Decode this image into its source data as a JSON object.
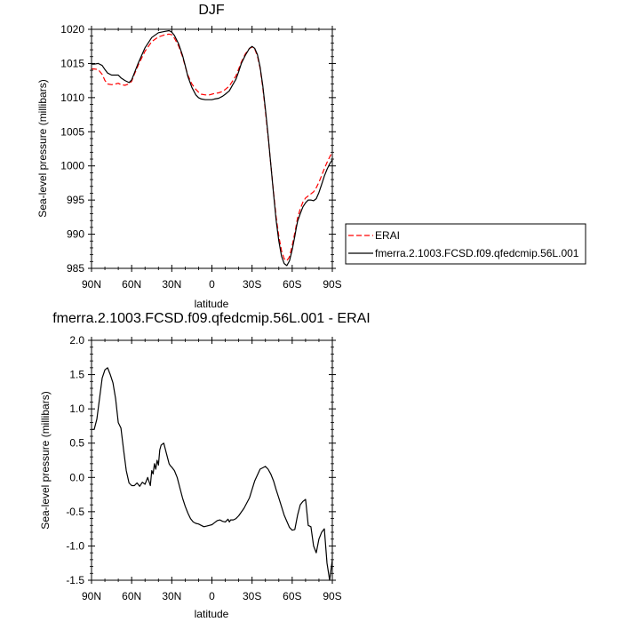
{
  "chart_data": [
    {
      "type": "line",
      "title": "DJF",
      "xlabel": "latitude",
      "ylabel": "Sea-level pressure (millibars)",
      "xlim": [
        90,
        -90
      ],
      "ylim": [
        985,
        1020
      ],
      "x_ticks": [
        90,
        60,
        30,
        0,
        -30,
        -60,
        -90
      ],
      "x_tick_labels": [
        "90N",
        "60N",
        "30N",
        "0",
        "30S",
        "60S",
        "90S"
      ],
      "y_ticks": [
        985,
        990,
        995,
        1000,
        1005,
        1010,
        1015,
        1020
      ],
      "y_tick_labels": [
        "985",
        "990",
        "995",
        "1000",
        "1005",
        "1010",
        "1015",
        "1020"
      ],
      "grid": false,
      "legend_position": "right",
      "series": [
        {
          "name": "ERAI",
          "color": "#ff0000",
          "style": "dashed",
          "x": [
            90,
            88,
            85,
            82,
            80,
            78,
            75,
            72,
            70,
            68,
            65,
            62,
            60,
            58,
            55,
            50,
            45,
            40,
            35,
            32,
            30,
            28,
            25,
            22,
            20,
            18,
            15,
            12,
            10,
            8,
            5,
            2,
            0,
            -2,
            -5,
            -8,
            -10,
            -13,
            -15,
            -18,
            -20,
            -22,
            -25,
            -28,
            -30,
            -32,
            -34,
            -36,
            -38,
            -40,
            -42,
            -44,
            -46,
            -48,
            -50,
            -52,
            -54,
            -56,
            -58,
            -60,
            -62,
            -63,
            -64,
            -66,
            -68,
            -70,
            -72,
            -74,
            -76,
            -78,
            -80,
            -82,
            -84,
            -86,
            -88,
            -90
          ],
          "values": [
            1014.2,
            1014.2,
            1014.1,
            1013.4,
            1012.5,
            1012.0,
            1011.9,
            1012.0,
            1012.1,
            1011.9,
            1011.8,
            1012.0,
            1012.4,
            1013.4,
            1014.8,
            1016.8,
            1018.2,
            1018.9,
            1019.2,
            1019.3,
            1019.2,
            1018.7,
            1017.6,
            1016.0,
            1014.6,
            1013.3,
            1012.0,
            1011.2,
            1010.8,
            1010.5,
            1010.4,
            1010.4,
            1010.5,
            1010.6,
            1010.7,
            1010.9,
            1011.2,
            1011.7,
            1012.3,
            1013.2,
            1014.2,
            1015.2,
            1016.4,
            1017.2,
            1017.4,
            1017.1,
            1016.1,
            1014.3,
            1011.5,
            1008.0,
            1004.3,
            1000.3,
            996.2,
            992.5,
            989.7,
            987.6,
            986.4,
            986.1,
            986.7,
            988.3,
            990.2,
            991.3,
            992.4,
            993.7,
            994.7,
            995.3,
            995.6,
            995.9,
            996.2,
            996.8,
            997.6,
            998.6,
            999.6,
            1000.5,
            1001.3,
            1002.0
          ]
        },
        {
          "name": "fmerra.2.1003.FCSD.f09.qfedcmip.56L.001",
          "color": "#000000",
          "style": "solid",
          "x": [
            90,
            88,
            85,
            82,
            80,
            78,
            75,
            72,
            70,
            68,
            65,
            62,
            60,
            58,
            55,
            50,
            45,
            40,
            35,
            32,
            30,
            28,
            25,
            22,
            20,
            18,
            15,
            12,
            10,
            8,
            5,
            2,
            0,
            -2,
            -5,
            -8,
            -10,
            -13,
            -15,
            -18,
            -20,
            -22,
            -25,
            -28,
            -30,
            -32,
            -34,
            -36,
            -38,
            -40,
            -42,
            -44,
            -46,
            -48,
            -50,
            -52,
            -54,
            -56,
            -58,
            -60,
            -62,
            -63,
            -64,
            -66,
            -68,
            -70,
            -72,
            -74,
            -76,
            -78,
            -80,
            -82,
            -84,
            -86,
            -88,
            -90
          ],
          "values": [
            1014.9,
            1014.9,
            1015.0,
            1014.7,
            1014.1,
            1013.6,
            1013.3,
            1013.3,
            1013.3,
            1012.9,
            1012.5,
            1012.2,
            1012.6,
            1013.6,
            1015.1,
            1017.3,
            1018.8,
            1019.5,
            1019.7,
            1019.8,
            1019.6,
            1019.1,
            1017.9,
            1016.2,
            1014.7,
            1013.1,
            1011.5,
            1010.4,
            1010.0,
            1009.8,
            1009.7,
            1009.7,
            1009.7,
            1009.8,
            1009.9,
            1010.2,
            1010.5,
            1011.0,
            1011.7,
            1012.7,
            1013.8,
            1015.0,
            1016.2,
            1017.2,
            1017.5,
            1017.2,
            1016.3,
            1014.5,
            1011.8,
            1008.3,
            1004.5,
            1000.3,
            996.0,
            992.0,
            989.0,
            986.8,
            985.7,
            985.4,
            986.1,
            987.7,
            989.7,
            990.9,
            991.9,
            993.0,
            994.0,
            994.6,
            995.0,
            995.0,
            994.9,
            995.2,
            996.1,
            997.3,
            998.5,
            999.5,
            1000.3,
            1000.9
          ]
        }
      ]
    },
    {
      "type": "line",
      "title": "fmerra.2.1003.FCSD.f09.qfedcmip.56L.001 - ERAI",
      "xlabel": "latitude",
      "ylabel": "Sea-level pressure (millibars)",
      "xlim": [
        90,
        -90
      ],
      "ylim": [
        -1.5,
        2.0
      ],
      "x_ticks": [
        90,
        60,
        30,
        0,
        -30,
        -60,
        -90
      ],
      "x_tick_labels": [
        "90N",
        "60N",
        "30N",
        "0",
        "30S",
        "60S",
        "90S"
      ],
      "y_ticks": [
        -1.5,
        -1.0,
        -0.5,
        0.0,
        0.5,
        1.0,
        1.5,
        2.0
      ],
      "y_tick_labels": [
        "-1.5",
        "-1.0",
        "-0.5",
        "0.0",
        "0.5",
        "1.0",
        "1.5",
        "2.0"
      ],
      "grid": false,
      "series": [
        {
          "color": "#000000",
          "style": "solid",
          "x": [
            90,
            88,
            86,
            84,
            82,
            80,
            78,
            76,
            74,
            72,
            70,
            68,
            66,
            64,
            62,
            60,
            58,
            56,
            54,
            52,
            50,
            48,
            46,
            45,
            44,
            43,
            42,
            41,
            40,
            39,
            38,
            36,
            34,
            32,
            31,
            30,
            28,
            26,
            24,
            22,
            20,
            18,
            16,
            14,
            12,
            10,
            8,
            6,
            4,
            2,
            0,
            -2,
            -4,
            -6,
            -8,
            -10,
            -12,
            -13,
            -14,
            -16,
            -18,
            -20,
            -24,
            -28,
            -32,
            -36,
            -40,
            -42,
            -44,
            -46,
            -48,
            -50,
            -54,
            -58,
            -60,
            -62,
            -64,
            -66,
            -68,
            -70,
            -72,
            -74,
            -76,
            -78,
            -80,
            -82,
            -84,
            -86,
            -88,
            -90
          ],
          "values": [
            0.7,
            0.7,
            0.85,
            1.15,
            1.45,
            1.57,
            1.6,
            1.5,
            1.38,
            1.15,
            0.8,
            0.72,
            0.4,
            0.1,
            -0.08,
            -0.12,
            -0.12,
            -0.08,
            -0.13,
            -0.07,
            -0.1,
            0.0,
            -0.12,
            0.1,
            0.05,
            0.2,
            0.12,
            0.25,
            0.18,
            0.4,
            0.47,
            0.5,
            0.35,
            0.2,
            0.17,
            0.15,
            0.1,
            0.0,
            -0.15,
            -0.3,
            -0.42,
            -0.52,
            -0.6,
            -0.65,
            -0.67,
            -0.68,
            -0.7,
            -0.72,
            -0.71,
            -0.7,
            -0.69,
            -0.66,
            -0.63,
            -0.62,
            -0.64,
            -0.65,
            -0.61,
            -0.65,
            -0.62,
            -0.62,
            -0.6,
            -0.56,
            -0.45,
            -0.3,
            -0.05,
            0.12,
            0.16,
            0.12,
            0.05,
            -0.05,
            -0.18,
            -0.3,
            -0.55,
            -0.73,
            -0.77,
            -0.76,
            -0.55,
            -0.4,
            -0.35,
            -0.32,
            -0.7,
            -0.72,
            -1.0,
            -1.1,
            -0.9,
            -0.8,
            -0.75,
            -1.25,
            -1.5,
            -1.2
          ]
        }
      ]
    }
  ]
}
